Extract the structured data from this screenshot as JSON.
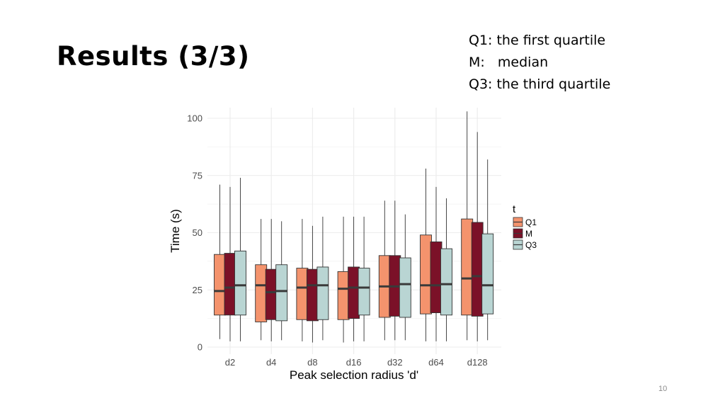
{
  "slide": {
    "title": "Results (3/3)",
    "page_number": "10",
    "legend_note": [
      "Q1: the first quartile",
      "M:   median",
      "Q3: the third quartile"
    ]
  },
  "colors": {
    "q1": "#f4936d",
    "m": "#7b1128",
    "q3": "#b9d5d3",
    "grid": "#ececec",
    "outline": "#333333",
    "median_line": "#3a3a3a"
  },
  "chart_data": {
    "type": "box",
    "xlabel": "Peak selection radius 'd'",
    "ylabel": "Time (s)",
    "ylim": [
      0,
      100
    ],
    "yticks": [
      0,
      25,
      50,
      75,
      100
    ],
    "categories": [
      "d2",
      "d4",
      "d8",
      "d16",
      "d32",
      "d64",
      "d128"
    ],
    "legend": {
      "title": "t",
      "position": "right",
      "entries": [
        "Q1",
        "M",
        "Q3"
      ]
    },
    "series": [
      {
        "name": "Q1",
        "boxes": [
          {
            "min": 3.5,
            "q1": 14,
            "median": 24.5,
            "q3": 40.5,
            "max": 71
          },
          {
            "min": 3,
            "q1": 11,
            "median": 27,
            "q3": 36,
            "max": 56
          },
          {
            "min": 2.5,
            "q1": 12,
            "median": 26,
            "q3": 34.5,
            "max": 56
          },
          {
            "min": 2,
            "q1": 12,
            "median": 25.5,
            "q3": 33,
            "max": 57
          },
          {
            "min": 3,
            "q1": 13,
            "median": 26.5,
            "q3": 40,
            "max": 64
          },
          {
            "min": 2.5,
            "q1": 14.5,
            "median": 27,
            "q3": 49,
            "max": 78
          },
          {
            "min": 3,
            "q1": 14,
            "median": 30,
            "q3": 56,
            "max": 103
          }
        ]
      },
      {
        "name": "M",
        "boxes": [
          {
            "min": 2.5,
            "q1": 14,
            "median": 26,
            "q3": 41,
            "max": 70
          },
          {
            "min": 2.5,
            "q1": 12,
            "median": 24,
            "q3": 34,
            "max": 56
          },
          {
            "min": 2,
            "q1": 11.5,
            "median": 27,
            "q3": 34,
            "max": 53
          },
          {
            "min": 2.5,
            "q1": 12.5,
            "median": 26,
            "q3": 35,
            "max": 57
          },
          {
            "min": 3,
            "q1": 13.5,
            "median": 26.5,
            "q3": 40,
            "max": 64
          },
          {
            "min": 2.5,
            "q1": 15,
            "median": 27,
            "q3": 46,
            "max": 70
          },
          {
            "min": 2.5,
            "q1": 13.5,
            "median": 31,
            "q3": 54.5,
            "max": 94
          }
        ]
      },
      {
        "name": "Q3",
        "boxes": [
          {
            "min": 2.5,
            "q1": 14,
            "median": 27,
            "q3": 42,
            "max": 74
          },
          {
            "min": 3,
            "q1": 11.5,
            "median": 24.5,
            "q3": 36,
            "max": 55
          },
          {
            "min": 3,
            "q1": 12,
            "median": 27,
            "q3": 35,
            "max": 57
          },
          {
            "min": 2.5,
            "q1": 14,
            "median": 26,
            "q3": 34.5,
            "max": 57
          },
          {
            "min": 3,
            "q1": 13,
            "median": 27.5,
            "q3": 39,
            "max": 58
          },
          {
            "min": 2.5,
            "q1": 14,
            "median": 27.5,
            "q3": 43,
            "max": 65
          },
          {
            "min": 3,
            "q1": 14.5,
            "median": 27,
            "q3": 49.5,
            "max": 82
          }
        ]
      }
    ]
  }
}
